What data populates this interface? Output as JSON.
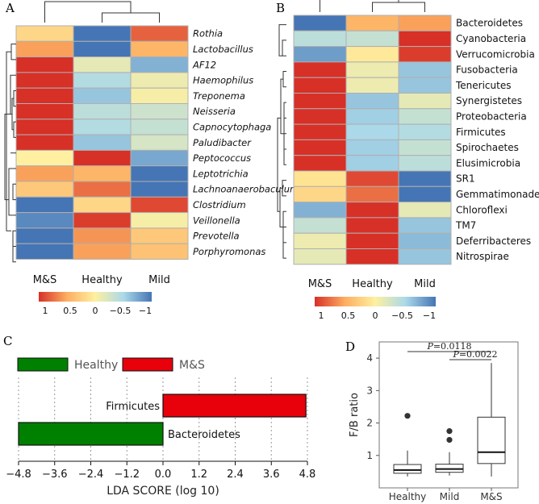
{
  "colors": {
    "red": "#D73027",
    "red_mid": "#F46D43",
    "orange": "#FDAE61",
    "yellow": "#FEF0A0",
    "pale": "#E6F2EC",
    "light_blue": "#ABD9E9",
    "blue_mid": "#74ADD1",
    "blue": "#4575B4",
    "lda_green": "#008000",
    "lda_red": "#E8000B",
    "grid": "#999999"
  },
  "chart_data": [
    {
      "type": "heatmap",
      "panel": "A",
      "columns": [
        "M&S",
        "Healthy",
        "Mild"
      ],
      "rows": [
        "Rothia",
        "Lactobacillus",
        "AF12",
        "Haemophilus",
        "Treponema",
        "Neisseria",
        "Capnocytophaga",
        "Paludibacter",
        "Peptococcus",
        "Leptotrichia",
        "Lachnoanaerobaculum",
        "Clostridium",
        "Veillonella",
        "Prevotella",
        "Porphyromonas"
      ],
      "values": [
        [
          0.2,
          -1.0,
          0.8
        ],
        [
          0.55,
          -1.0,
          0.45
        ],
        [
          1.0,
          -0.15,
          -0.7
        ],
        [
          1.0,
          -0.45,
          -0.1
        ],
        [
          1.0,
          -0.6,
          -0.05
        ],
        [
          1.0,
          -0.4,
          -0.3
        ],
        [
          1.0,
          -0.45,
          -0.35
        ],
        [
          1.0,
          -0.6,
          -0.25
        ],
        [
          0.0,
          1.0,
          -0.75
        ],
        [
          0.55,
          0.45,
          -1.0
        ],
        [
          0.3,
          0.75,
          -1.0
        ],
        [
          -1.0,
          0.2,
          0.9
        ],
        [
          -0.9,
          0.95,
          -0.05
        ],
        [
          -1.0,
          0.6,
          0.3
        ],
        [
          -1.0,
          0.55,
          0.35
        ]
      ],
      "legend_ticks": [
        "1",
        "0.5",
        "0",
        "−0.5",
        "−1"
      ]
    },
    {
      "type": "heatmap",
      "panel": "B",
      "columns": [
        "M&S",
        "Healthy",
        "Mild"
      ],
      "rows": [
        "Bacteroidetes",
        "Cyanobacteria",
        "Verrucomicrobia",
        "Fusobacteria",
        "Tenericutes",
        "Synergistetes",
        "Proteobacteria",
        "Firmicutes",
        "Spirochaetes",
        "Elusimicrobia",
        "SR1",
        "Gemmatimonadetes",
        "Chloroflexi",
        "TM7",
        "Deferribacteres",
        "Nitrospirae"
      ],
      "values": [
        [
          -1.0,
          0.45,
          0.55
        ],
        [
          -0.4,
          -0.35,
          1.0
        ],
        [
          -0.8,
          0.05,
          0.95
        ],
        [
          1.0,
          -0.1,
          -0.6
        ],
        [
          1.0,
          -0.1,
          -0.6
        ],
        [
          1.0,
          -0.6,
          -0.15
        ],
        [
          1.0,
          -0.55,
          -0.35
        ],
        [
          1.0,
          -0.5,
          -0.45
        ],
        [
          1.0,
          -0.55,
          -0.35
        ],
        [
          1.0,
          -0.55,
          -0.4
        ],
        [
          0.1,
          0.9,
          -1.0
        ],
        [
          0.2,
          0.75,
          -1.0
        ],
        [
          -0.7,
          1.0,
          -0.15
        ],
        [
          -0.35,
          1.0,
          -0.6
        ],
        [
          -0.1,
          1.0,
          -0.65
        ],
        [
          -0.15,
          1.0,
          -0.6
        ]
      ],
      "legend_ticks": [
        "1",
        "0.5",
        "0",
        "−0.5",
        "−1"
      ]
    },
    {
      "type": "bar",
      "panel": "C",
      "orientation": "horizontal",
      "categories": [
        "Firmicutes",
        "Bacteroidetes"
      ],
      "values": [
        4.75,
        -4.8
      ],
      "groups": [
        "M&S",
        "Healthy"
      ],
      "legend": [
        "Healthy",
        "M&S"
      ],
      "xlabel": "LDA SCORE (log 10)",
      "xlim": [
        -4.8,
        4.8
      ],
      "xticks": [
        "−4.8",
        "−3.6",
        "−2.4",
        "−1.2",
        "0.0",
        "1.2",
        "2.4",
        "3.6",
        "4.8"
      ]
    },
    {
      "type": "box",
      "panel": "D",
      "categories": [
        "Healthy",
        "Mild",
        "M&S"
      ],
      "ylabel": "F/B ratio",
      "ylim": [
        0,
        4.5
      ],
      "yticks": [
        "1",
        "2",
        "3",
        "4"
      ],
      "boxes": [
        {
          "q1": 0.45,
          "median": 0.55,
          "q3": 0.72,
          "whisker_low": 0.35,
          "whisker_high": 1.15,
          "outliers": [
            2.22
          ]
        },
        {
          "q1": 0.48,
          "median": 0.58,
          "q3": 0.73,
          "whisker_low": 0.38,
          "whisker_high": 1.1,
          "outliers": [
            1.48,
            1.75
          ]
        },
        {
          "q1": 0.75,
          "median": 1.1,
          "q3": 2.18,
          "whisker_low": 0.35,
          "whisker_high": 3.85,
          "outliers": []
        }
      ],
      "significance": [
        {
          "from": "Healthy",
          "to": "M&S",
          "p": "0.0118",
          "label_p": "P",
          "label_eq": "=0.0118"
        },
        {
          "from": "Mild",
          "to": "M&S",
          "p": "0.0022",
          "label_p": "P",
          "label_eq": "=0.0022"
        }
      ]
    }
  ],
  "panel_labels": {
    "a": "A",
    "b": "B",
    "c": "C",
    "d": "D"
  }
}
